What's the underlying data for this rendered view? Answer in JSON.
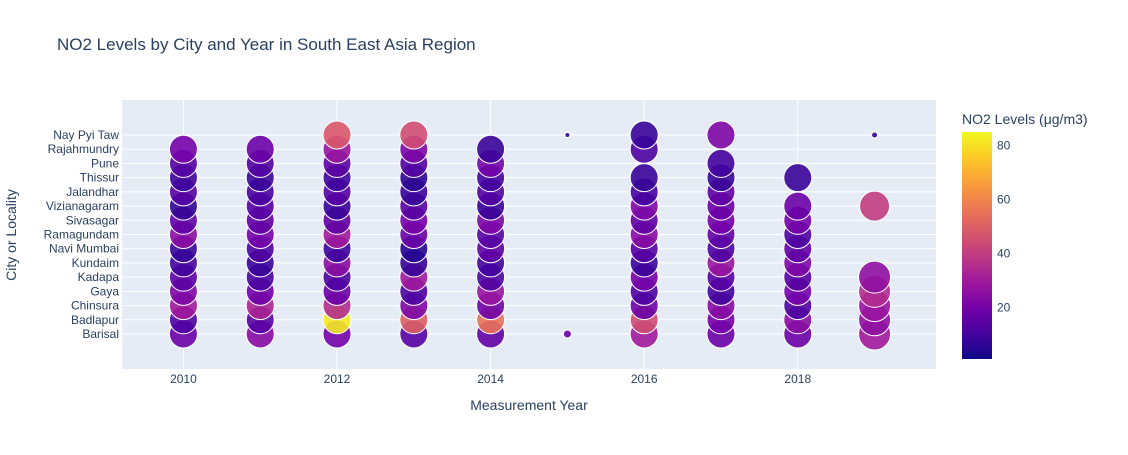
{
  "chart_data": {
    "type": "scatter",
    "title": "NO2 Levels by City and Year in  South East Asia Region",
    "xlabel": "Measurement Year",
    "ylabel": "City or Locality",
    "xlim": [
      2009.2,
      2019.8
    ],
    "x_ticks": [
      2010,
      2012,
      2014,
      2016,
      2018
    ],
    "y_tick_labels": [
      "Barisal",
      "Badlapur",
      "Chinsura",
      "Gaya",
      "Kadapa",
      "Kundaim",
      "Navi Mumbai",
      "Ramagundam",
      "Sivasagar",
      "Vizianagaram",
      "Jalandhar",
      "Thissur",
      "Pune",
      "Rajahmundry",
      "Nay Pyi Taw"
    ],
    "colorbar": {
      "title": "NO2 Levels (μg/m3)",
      "ticks": [
        20,
        40,
        60,
        80
      ],
      "range": [
        1,
        85
      ],
      "colorscale": [
        "#0d0887",
        "#46039f",
        "#7201a8",
        "#9c179e",
        "#bd3786",
        "#d8576b",
        "#ed7953",
        "#fb9f3a",
        "#fdca26",
        "#f0f921"
      ]
    },
    "legend": "none",
    "grid": true,
    "series": [
      {
        "x": [
          2010,
          2010,
          2010,
          2010,
          2010,
          2010,
          2010,
          2010,
          2010,
          2010,
          2010,
          2010,
          2010,
          2010,
          2011,
          2011,
          2011,
          2011,
          2011,
          2011,
          2011,
          2011,
          2011,
          2011,
          2011,
          2011,
          2011,
          2011,
          2012,
          2012,
          2012,
          2012,
          2012,
          2012,
          2012,
          2012,
          2012,
          2012,
          2012,
          2012,
          2012,
          2012,
          2012,
          2013,
          2013,
          2013,
          2013,
          2013,
          2013,
          2013,
          2013,
          2013,
          2013,
          2013,
          2013,
          2013,
          2013,
          2013,
          2014,
          2014,
          2014,
          2014,
          2014,
          2014,
          2014,
          2014,
          2014,
          2014,
          2014,
          2014,
          2014,
          2014,
          2015,
          2015,
          2016,
          2016,
          2016,
          2016,
          2016,
          2016,
          2016,
          2016,
          2016,
          2016,
          2016,
          2016,
          2016,
          2016,
          2017,
          2017,
          2017,
          2017,
          2017,
          2017,
          2017,
          2017,
          2017,
          2017,
          2017,
          2017,
          2017,
          2017,
          2018,
          2018,
          2018,
          2018,
          2018,
          2018,
          2018,
          2018,
          2018,
          2018,
          2018,
          2019,
          2019,
          2019,
          2019,
          2019,
          2019,
          2019
        ],
        "y": [
          "Barisal",
          "Badlapur",
          "Chinsura",
          "Gaya",
          "Kadapa",
          "Kundaim",
          "Navi Mumbai",
          "Ramagundam",
          "Sivasagar",
          "Vizianagaram",
          "Jalandhar",
          "Thissur",
          "Pune",
          "Rajahmundry",
          "Barisal",
          "Badlapur",
          "Chinsura",
          "Gaya",
          "Kadapa",
          "Kundaim",
          "Navi Mumbai",
          "Ramagundam",
          "Sivasagar",
          "Vizianagaram",
          "Jalandhar",
          "Thissur",
          "Pune",
          "Rajahmundry",
          "Barisal",
          "Badlapur",
          "Chinsura",
          "Gaya",
          "Kadapa",
          "Kundaim",
          "Navi Mumbai",
          "Ramagundam",
          "Sivasagar",
          "Vizianagaram",
          "Jalandhar",
          "Thissur",
          "Pune",
          "Rajahmundry",
          "Nay Pyi Taw",
          "Barisal",
          "Badlapur",
          "Chinsura",
          "Gaya",
          "Kadapa",
          "Kundaim",
          "Navi Mumbai",
          "Ramagundam",
          "Sivasagar",
          "Vizianagaram",
          "Jalandhar",
          "Thissur",
          "Pune",
          "Rajahmundry",
          "Nay Pyi Taw",
          "Barisal",
          "Badlapur",
          "Chinsura",
          "Gaya",
          "Kadapa",
          "Kundaim",
          "Navi Mumbai",
          "Ramagundam",
          "Sivasagar",
          "Vizianagaram",
          "Jalandhar",
          "Thissur",
          "Pune",
          "Rajahmundry",
          "Barisal",
          "Nay Pyi Taw",
          "Barisal",
          "Badlapur",
          "Chinsura",
          "Gaya",
          "Kadapa",
          "Kundaim",
          "Navi Mumbai",
          "Ramagundam",
          "Sivasagar",
          "Vizianagaram",
          "Jalandhar",
          "Thissur",
          "Rajahmundry",
          "Nay Pyi Taw",
          "Barisal",
          "Badlapur",
          "Chinsura",
          "Gaya",
          "Kadapa",
          "Kundaim",
          "Navi Mumbai",
          "Ramagundam",
          "Sivasagar",
          "Vizianagaram",
          "Jalandhar",
          "Thissur",
          "Pune",
          "Nay Pyi Taw",
          "Barisal",
          "Badlapur",
          "Chinsura",
          "Gaya",
          "Kadapa",
          "Kundaim",
          "Navi Mumbai",
          "Ramagundam",
          "Sivasagar",
          "Vizianagaram",
          "Thissur",
          "Barisal",
          "Badlapur",
          "Chinsura",
          "Gaya",
          "Kadapa",
          "Vizianagaram",
          "Nay Pyi Taw"
        ],
        "no2": [
          18,
          12,
          30,
          22,
          15,
          10,
          8,
          25,
          16,
          7,
          14,
          9,
          13,
          20,
          24,
          14,
          33,
          19,
          11,
          8,
          12,
          20,
          16,
          14,
          11,
          8,
          13,
          18,
          20,
          82,
          35,
          18,
          12,
          25,
          9,
          30,
          16,
          8,
          14,
          9,
          15,
          28,
          48,
          14,
          50,
          22,
          12,
          30,
          8,
          5,
          18,
          20,
          14,
          8,
          6,
          13,
          22,
          45,
          16,
          55,
          19,
          28,
          12,
          10,
          16,
          14,
          22,
          8,
          13,
          10,
          20,
          8,
          18,
          6,
          30,
          45,
          18,
          12,
          20,
          8,
          14,
          24,
          16,
          22,
          10,
          8,
          12,
          8,
          18,
          20,
          24,
          10,
          14,
          28,
          12,
          16,
          20,
          18,
          16,
          8,
          10,
          22,
          18,
          25,
          12,
          20,
          14,
          22,
          16,
          12,
          20,
          18,
          8,
          30,
          26,
          28,
          35,
          26,
          40,
          6
        ]
      }
    ]
  }
}
